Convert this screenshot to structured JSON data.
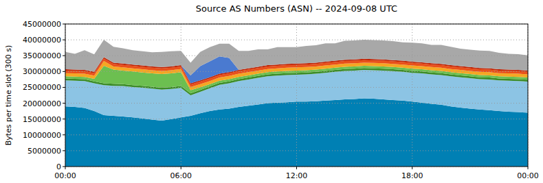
{
  "chart_data": {
    "type": "area",
    "stacked": true,
    "grid": true,
    "title": "Source AS Numbers (ASN) -- 2024-09-08 UTC",
    "y_label": "Bytes per time slot (300 s)",
    "x": [
      0,
      0.5,
      1,
      1.5,
      2,
      2.5,
      3,
      3.5,
      4,
      4.5,
      5,
      5.5,
      6,
      6.5,
      7,
      7.5,
      8,
      8.5,
      9,
      9.5,
      10,
      10.5,
      11,
      11.5,
      12,
      12.5,
      13,
      13.5,
      14,
      14.5,
      15,
      15.5,
      16,
      16.5,
      17,
      17.5,
      18,
      18.5,
      19,
      19.5,
      20,
      20.5,
      21,
      21.5,
      22,
      22.5,
      23,
      23.5,
      24
    ],
    "xlim": [
      0,
      24
    ],
    "xticks": [
      {
        "value": 0,
        "label": "00:00"
      },
      {
        "value": 6,
        "label": "06:00"
      },
      {
        "value": 12,
        "label": "12:00"
      },
      {
        "value": 18,
        "label": "18:00"
      },
      {
        "value": 24,
        "label": "00:00"
      }
    ],
    "ylim": [
      0,
      45000000
    ],
    "yticks": [
      0,
      5000000,
      10000000,
      15000000,
      20000000,
      25000000,
      30000000,
      35000000,
      40000000,
      45000000
    ],
    "series": [
      {
        "color": "#0080b4",
        "values": [
          19000000,
          18800000,
          18500000,
          17500000,
          16200000,
          16000000,
          15800000,
          15500000,
          15200000,
          14800000,
          14500000,
          15000000,
          15500000,
          16000000,
          16800000,
          17500000,
          18000000,
          18300000,
          18800000,
          19200000,
          19600000,
          20000000,
          20200000,
          20300000,
          20500000,
          20500000,
          20600000,
          20800000,
          21000000,
          21200000,
          21300000,
          21500000,
          21400000,
          21200000,
          21000000,
          20800000,
          20500000,
          20200000,
          19800000,
          19500000,
          19000000,
          18600000,
          18300000,
          18000000,
          17800000,
          17500000,
          17300000,
          17200000,
          17000000
        ]
      },
      {
        "color": "#8cc4e4",
        "values": [
          8200000,
          8300000,
          8500000,
          8800000,
          9500000,
          9500000,
          9600000,
          9600000,
          9700000,
          9800000,
          9800000,
          9500000,
          9300000,
          6500000,
          6800000,
          7200000,
          7800000,
          8000000,
          8200000,
          8300000,
          8400000,
          8500000,
          8500000,
          8600000,
          8500000,
          8600000,
          8700000,
          8800000,
          8900000,
          9000000,
          9000000,
          9000000,
          9000000,
          9100000,
          9100000,
          9100000,
          9100000,
          9200000,
          9300000,
          9400000,
          9500000,
          9600000,
          9600000,
          9600000,
          9700000,
          9700000,
          9800000,
          9800000,
          9800000
        ]
      },
      {
        "color": "#3c8c28",
        "values": [
          600000,
          600000,
          600000,
          600000,
          600000,
          600000,
          600000,
          600000,
          600000,
          600000,
          600000,
          600000,
          600000,
          600000,
          600000,
          600000,
          600000,
          600000,
          600000,
          600000,
          600000,
          600000,
          600000,
          600000,
          600000,
          600000,
          600000,
          600000,
          600000,
          600000,
          600000,
          600000,
          600000,
          600000,
          600000,
          600000,
          600000,
          600000,
          600000,
          600000,
          600000,
          600000,
          600000,
          600000,
          600000,
          600000,
          600000,
          600000,
          600000
        ]
      },
      {
        "color": "#6cbf50",
        "values": [
          700000,
          700000,
          700000,
          800000,
          5500000,
          4500000,
          4300000,
          4300000,
          4200000,
          4200000,
          4300000,
          4300000,
          4400000,
          1000000,
          800000,
          700000,
          700000,
          700000,
          700000,
          700000,
          700000,
          700000,
          700000,
          700000,
          700000,
          700000,
          700000,
          700000,
          700000,
          700000,
          700000,
          700000,
          700000,
          700000,
          700000,
          700000,
          700000,
          700000,
          700000,
          700000,
          700000,
          700000,
          700000,
          700000,
          700000,
          700000,
          700000,
          700000,
          700000
        ]
      },
      {
        "color": "#f5a623",
        "values": [
          1000000,
          1000000,
          1000000,
          1000000,
          1500000,
          1000000,
          1000000,
          1000000,
          1000000,
          1000000,
          1000000,
          1000000,
          1000000,
          1000000,
          1000000,
          1000000,
          1000000,
          1000000,
          1000000,
          1000000,
          1000000,
          1000000,
          1000000,
          1000000,
          1000000,
          1000000,
          1000000,
          1000000,
          1000000,
          1000000,
          1000000,
          1000000,
          1000000,
          1000000,
          1000000,
          1000000,
          1000000,
          1000000,
          1000000,
          1000000,
          1000000,
          1000000,
          1000000,
          1000000,
          1000000,
          1000000,
          1000000,
          1000000,
          1000000
        ]
      },
      {
        "color": "#e8501a",
        "values": [
          800000,
          800000,
          800000,
          800000,
          800000,
          800000,
          800000,
          800000,
          800000,
          800000,
          800000,
          800000,
          800000,
          800000,
          800000,
          800000,
          800000,
          800000,
          800000,
          800000,
          800000,
          800000,
          800000,
          800000,
          800000,
          800000,
          800000,
          800000,
          800000,
          800000,
          800000,
          800000,
          800000,
          800000,
          800000,
          800000,
          800000,
          800000,
          800000,
          800000,
          800000,
          800000,
          800000,
          800000,
          800000,
          800000,
          800000,
          800000,
          800000
        ]
      },
      {
        "color": "#c02000",
        "values": [
          400000,
          400000,
          400000,
          400000,
          400000,
          400000,
          400000,
          400000,
          400000,
          400000,
          400000,
          400000,
          400000,
          400000,
          400000,
          400000,
          400000,
          400000,
          400000,
          400000,
          400000,
          400000,
          400000,
          400000,
          400000,
          400000,
          400000,
          400000,
          400000,
          400000,
          400000,
          400000,
          400000,
          400000,
          400000,
          400000,
          400000,
          400000,
          400000,
          400000,
          400000,
          400000,
          400000,
          400000,
          400000,
          400000,
          400000,
          400000,
          400000
        ]
      },
      {
        "color": "#4a7ad0",
        "values": [
          0,
          0,
          0,
          0,
          0,
          0,
          0,
          0,
          0,
          0,
          0,
          0,
          0,
          2500000,
          4500000,
          5000000,
          5500000,
          4500000,
          0,
          0,
          0,
          0,
          0,
          0,
          0,
          0,
          0,
          0,
          0,
          0,
          0,
          0,
          0,
          0,
          0,
          0,
          0,
          0,
          0,
          0,
          0,
          0,
          0,
          0,
          0,
          0,
          0,
          0,
          0
        ]
      },
      {
        "color": "#a8a8a8",
        "values": [
          5500000,
          5000000,
          6200000,
          5500000,
          5500000,
          5000000,
          4800000,
          4500000,
          4500000,
          4500000,
          4800000,
          4800000,
          4500000,
          4000000,
          4500000,
          4500000,
          4000000,
          4500000,
          6000000,
          5500000,
          5500000,
          5000000,
          5500000,
          5300000,
          5200000,
          5500000,
          5500000,
          5800000,
          5500000,
          6000000,
          6000000,
          6000000,
          6000000,
          6000000,
          6000000,
          5800000,
          6000000,
          6000000,
          5800000,
          6000000,
          5800000,
          5500000,
          5500000,
          5500000,
          5500000,
          5200000,
          5000000,
          5000000,
          4800000
        ]
      }
    ]
  }
}
